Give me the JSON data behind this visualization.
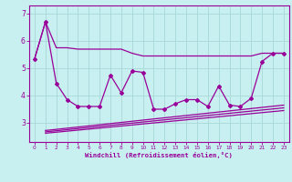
{
  "xlabel": "Windchill (Refroidissement éolien,°C)",
  "bg_color": "#c8f0f0",
  "grid_color": "#a8d8d8",
  "line_color": "#990099",
  "xlim": [
    -0.5,
    23.5
  ],
  "ylim": [
    2.3,
    7.3
  ],
  "yticks": [
    3,
    4,
    5,
    6,
    7
  ],
  "xticks": [
    0,
    1,
    2,
    3,
    4,
    5,
    6,
    7,
    8,
    9,
    10,
    11,
    12,
    13,
    14,
    15,
    16,
    17,
    18,
    19,
    20,
    21,
    22,
    23
  ],
  "main_data": {
    "x": [
      0,
      1,
      2,
      3,
      4,
      5,
      6,
      7,
      8,
      9,
      10,
      11,
      12,
      13,
      14,
      15,
      16,
      17,
      18,
      19,
      20,
      21,
      22,
      23
    ],
    "y": [
      5.35,
      6.7,
      4.45,
      3.85,
      3.6,
      3.6,
      3.6,
      4.75,
      4.1,
      4.9,
      4.85,
      3.5,
      3.5,
      3.7,
      3.85,
      3.85,
      3.6,
      4.35,
      3.65,
      3.6,
      3.9,
      5.25,
      5.55,
      5.55
    ]
  },
  "upper_line": {
    "x": [
      0,
      1,
      2,
      3,
      4,
      5,
      6,
      7,
      8,
      9,
      10,
      11,
      12,
      13,
      14,
      15,
      16,
      17,
      18,
      19,
      20,
      21,
      22,
      23
    ],
    "y": [
      5.35,
      6.7,
      5.75,
      5.75,
      5.7,
      5.7,
      5.7,
      5.7,
      5.7,
      5.55,
      5.45,
      5.45,
      5.45,
      5.45,
      5.45,
      5.45,
      5.45,
      5.45,
      5.45,
      5.45,
      5.45,
      5.55,
      5.55,
      5.55
    ]
  },
  "lower_lines": [
    {
      "x": [
        1,
        23
      ],
      "y": [
        2.62,
        3.45
      ]
    },
    {
      "x": [
        1,
        23
      ],
      "y": [
        2.67,
        3.55
      ]
    },
    {
      "x": [
        1,
        23
      ],
      "y": [
        2.72,
        3.65
      ]
    }
  ]
}
